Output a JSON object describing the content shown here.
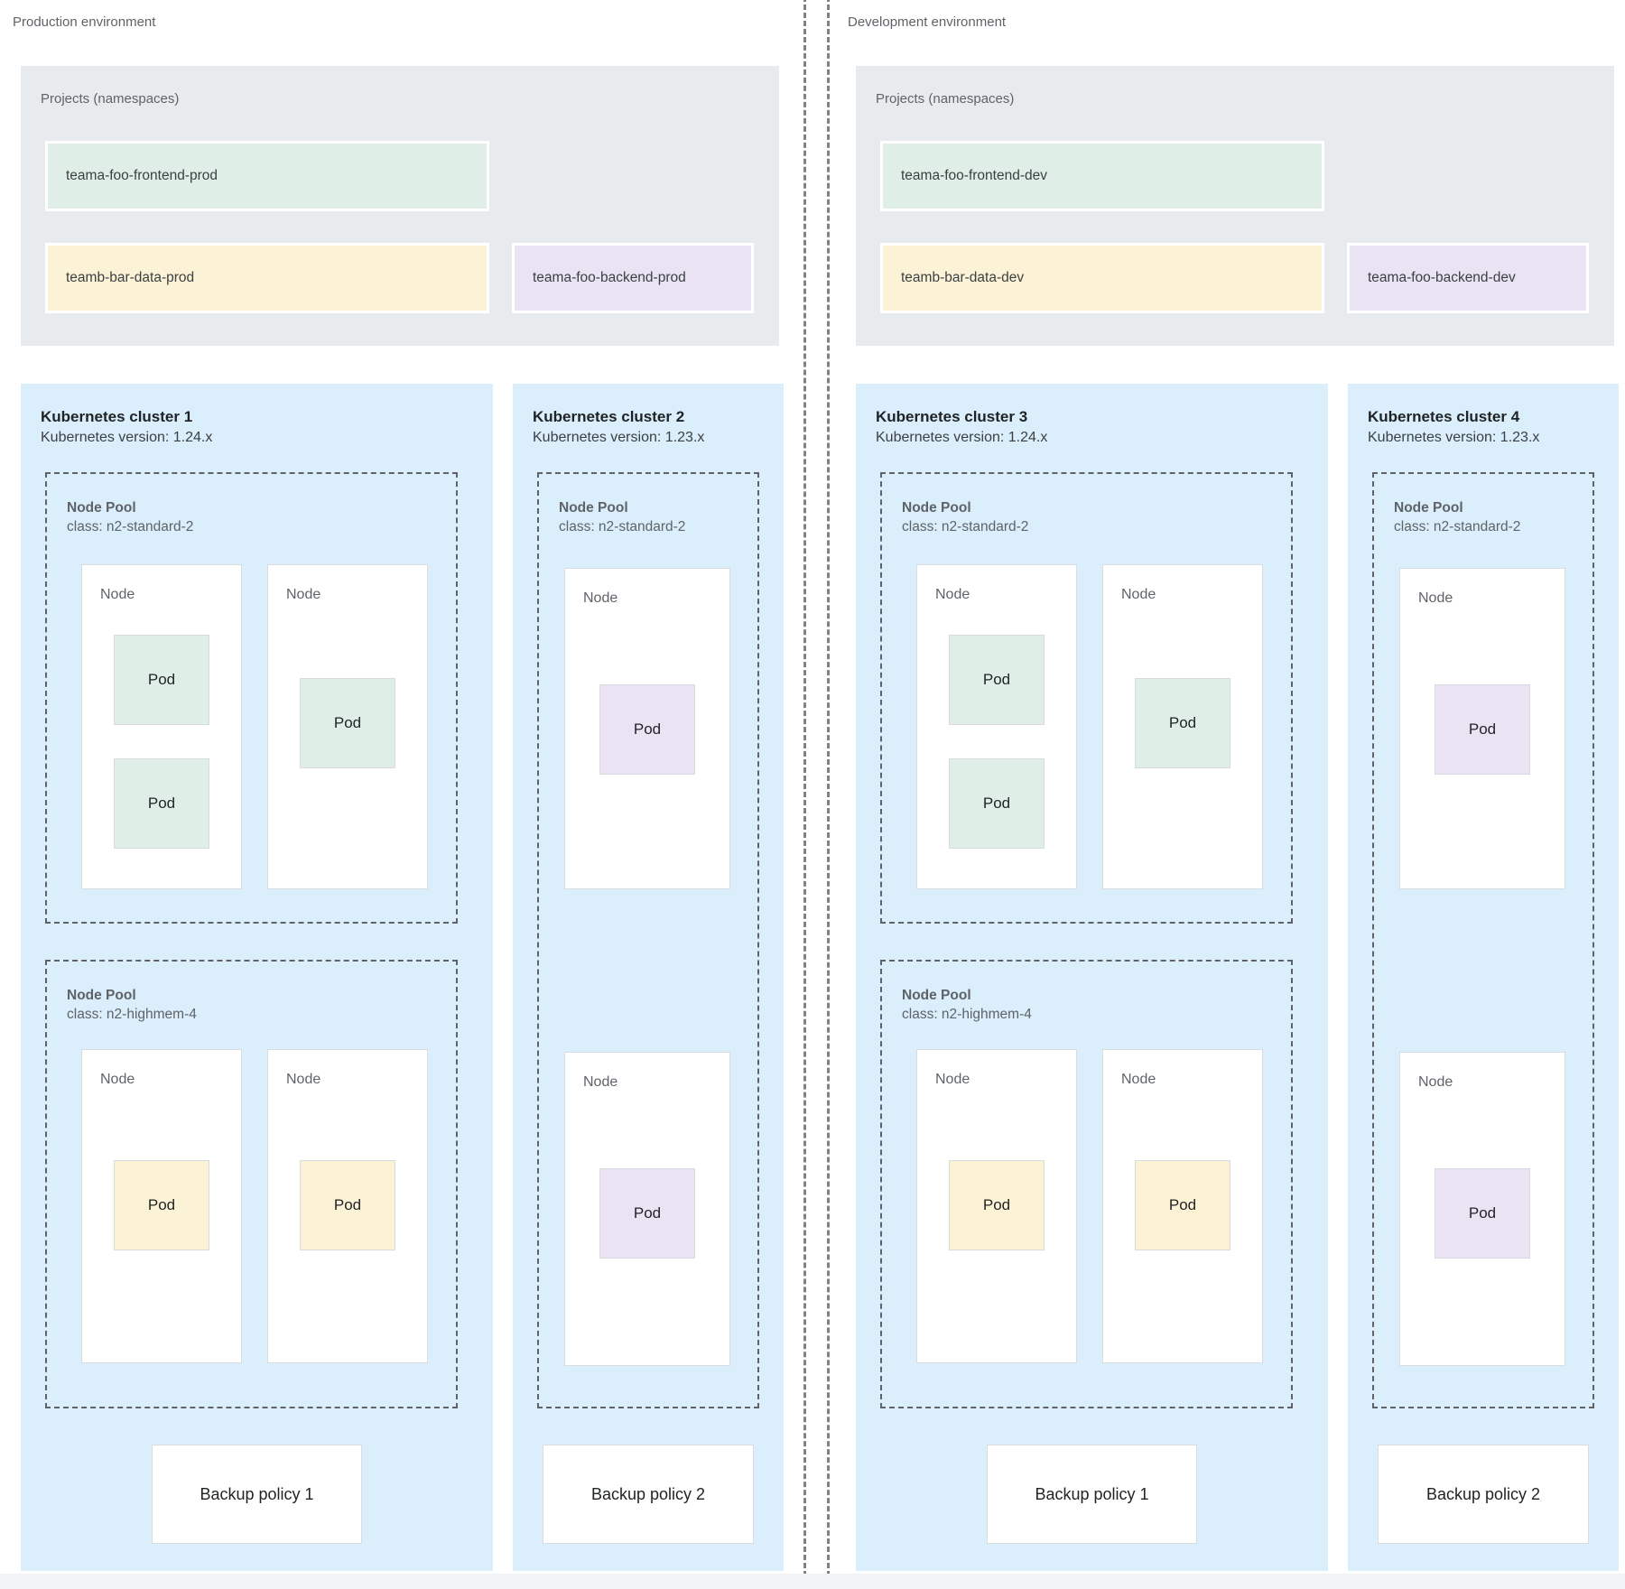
{
  "colors": {
    "cluster_background": "#daeefb",
    "projects_background": "#e8ebee",
    "namespace_green": "#dfeee6",
    "namespace_yellow": "#fcf3d6",
    "namespace_purple": "#e9e3f3",
    "dashed_border": "#5f6368"
  },
  "environments": [
    {
      "label": "Production environment",
      "projects": {
        "title": "Projects (namespaces)",
        "namespaces": [
          {
            "label": "teama-foo-frontend-prod",
            "color": "green"
          },
          {
            "label": "teamb-bar-data-prod",
            "color": "yellow"
          },
          {
            "label": "teama-foo-backend-prod",
            "color": "purple"
          }
        ]
      },
      "clusters": [
        {
          "title": "Kubernetes cluster 1",
          "version": "Kubernetes version: 1.24.x",
          "node_pools": [
            {
              "name": "Node Pool",
              "class": "class: n2-standard-2",
              "nodes": [
                {
                  "label": "Node",
                  "pods": [
                    {
                      "label": "Pod",
                      "color": "green"
                    },
                    {
                      "label": "Pod",
                      "color": "green"
                    }
                  ]
                },
                {
                  "label": "Node",
                  "pods": [
                    {
                      "label": "Pod",
                      "color": "green"
                    }
                  ]
                }
              ]
            },
            {
              "name": "Node Pool",
              "class": "class: n2-highmem-4",
              "nodes": [
                {
                  "label": "Node",
                  "pods": [
                    {
                      "label": "Pod",
                      "color": "yellow"
                    }
                  ]
                },
                {
                  "label": "Node",
                  "pods": [
                    {
                      "label": "Pod",
                      "color": "yellow"
                    }
                  ]
                }
              ]
            }
          ],
          "backup_policy": "Backup policy 1"
        },
        {
          "title": "Kubernetes cluster 2",
          "version": "Kubernetes version: 1.23.x",
          "node_pools": [
            {
              "name": "Node Pool",
              "class": "class: n2-standard-2",
              "nodes": [
                {
                  "label": "Node",
                  "pods": [
                    {
                      "label": "Pod",
                      "color": "purple"
                    }
                  ]
                },
                {
                  "label": "Node",
                  "pods": [
                    {
                      "label": "Pod",
                      "color": "purple"
                    }
                  ]
                }
              ]
            }
          ],
          "backup_policy": "Backup policy 2"
        }
      ]
    },
    {
      "label": "Development environment",
      "projects": {
        "title": "Projects (namespaces)",
        "namespaces": [
          {
            "label": "teama-foo-frontend-dev",
            "color": "green"
          },
          {
            "label": "teamb-bar-data-dev",
            "color": "yellow"
          },
          {
            "label": "teama-foo-backend-dev",
            "color": "purple"
          }
        ]
      },
      "clusters": [
        {
          "title": "Kubernetes cluster 3",
          "version": "Kubernetes version: 1.24.x",
          "node_pools": [
            {
              "name": "Node Pool",
              "class": "class: n2-standard-2",
              "nodes": [
                {
                  "label": "Node",
                  "pods": [
                    {
                      "label": "Pod",
                      "color": "green"
                    },
                    {
                      "label": "Pod",
                      "color": "green"
                    }
                  ]
                },
                {
                  "label": "Node",
                  "pods": [
                    {
                      "label": "Pod",
                      "color": "green"
                    }
                  ]
                }
              ]
            },
            {
              "name": "Node Pool",
              "class": "class: n2-highmem-4",
              "nodes": [
                {
                  "label": "Node",
                  "pods": [
                    {
                      "label": "Pod",
                      "color": "yellow"
                    }
                  ]
                },
                {
                  "label": "Node",
                  "pods": [
                    {
                      "label": "Pod",
                      "color": "yellow"
                    }
                  ]
                }
              ]
            }
          ],
          "backup_policy": "Backup policy 1"
        },
        {
          "title": "Kubernetes cluster 4",
          "version": "Kubernetes version: 1.23.x",
          "node_pools": [
            {
              "name": "Node Pool",
              "class": "class: n2-standard-2",
              "nodes": [
                {
                  "label": "Node",
                  "pods": [
                    {
                      "label": "Pod",
                      "color": "purple"
                    }
                  ]
                },
                {
                  "label": "Node",
                  "pods": [
                    {
                      "label": "Pod",
                      "color": "purple"
                    }
                  ]
                }
              ]
            }
          ],
          "backup_policy": "Backup policy 2"
        }
      ]
    }
  ]
}
